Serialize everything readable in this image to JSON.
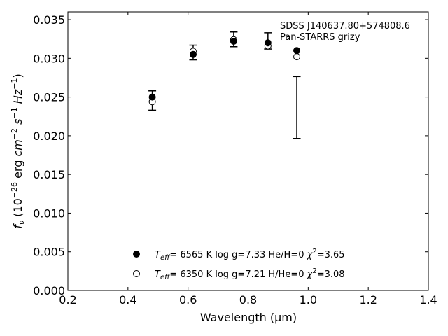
{
  "chart_data": {
    "type": "scatter",
    "title_lines": [
      "SDSS J140637.80+574808.6",
      "Pan-STARRS grizy"
    ],
    "xlabel": "Wavelength (μm)",
    "ylabel_parts": [
      "f",
      "ν",
      " (10",
      "−26",
      " erg ",
      "cm",
      "−2",
      " ",
      "s",
      "−1",
      " ",
      "Hz",
      "−1",
      ")"
    ],
    "xlim": [
      0.2,
      1.4
    ],
    "ylim": [
      0.0,
      0.036
    ],
    "xticks": [
      0.2,
      0.4,
      0.6,
      0.8,
      1.0,
      1.2,
      1.4
    ],
    "xtick_labels": [
      "0.2",
      "0.4",
      "0.6",
      "0.8",
      "1.0",
      "1.2",
      "1.4"
    ],
    "yticks": [
      0.0,
      0.005,
      0.01,
      0.015,
      0.02,
      0.025,
      0.03,
      0.035
    ],
    "ytick_labels": [
      "0.000",
      "0.005",
      "0.010",
      "0.015",
      "0.020",
      "0.025",
      "0.030",
      "0.035"
    ],
    "grid": false,
    "observed": {
      "x": [
        0.481,
        0.617,
        0.752,
        0.866,
        0.962
      ],
      "y": [
        0.02455,
        0.03075,
        0.03245,
        0.03225,
        0.02365
      ],
      "yerr_low": [
        0.00125,
        0.00095,
        0.00095,
        0.00105,
        0.004
      ],
      "yerr_high": [
        0.00125,
        0.00095,
        0.00095,
        0.00105,
        0.004
      ]
    },
    "series": [
      {
        "marker": "filled-circle",
        "x": [
          0.481,
          0.617,
          0.752,
          0.866,
          0.962
        ],
        "y": [
          0.025,
          0.0305,
          0.0322,
          0.032,
          0.031
        ],
        "legend": {
          "teff_label": "T",
          "teff_sub": "eff",
          "value": "=  6565 K  log g=7.33  He/H=0  ",
          "chi": "χ",
          "chi_sup": "2",
          "chi_value": "=3.65"
        }
      },
      {
        "marker": "open-circle",
        "x": [
          0.481,
          0.617,
          0.752,
          0.866,
          0.962
        ],
        "y": [
          0.0244,
          0.0309,
          0.0324,
          0.0316,
          0.0302
        ],
        "legend": {
          "teff_label": "T",
          "teff_sub": "eff",
          "value": "=  6350 K  log g=7.21  H/He=0  ",
          "chi": "χ",
          "chi_sup": "2",
          "chi_value": "=3.08"
        }
      }
    ],
    "colors": {
      "ink": "#000000",
      "background": "#ffffff"
    }
  }
}
